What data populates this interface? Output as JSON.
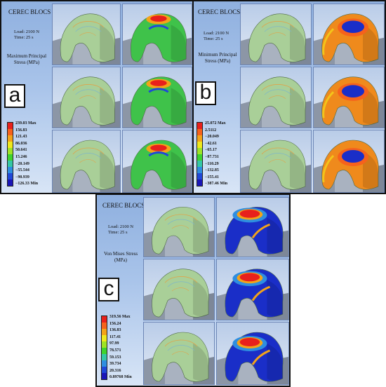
{
  "panels": [
    {
      "id": "a",
      "letter": "a",
      "title": "CEREC BLOCS",
      "load": "Load: 2100 N",
      "time": "Time: 25 s",
      "stress_type": "Maximum Principal Stress (MPa)",
      "legend": [
        "239.03 Max",
        "156.83",
        "121.43",
        "86.036",
        "50.641",
        "15.246",
        "−20.149",
        "−55.544",
        "−90.939",
        "−126.33 Min"
      ],
      "colormap": [
        "#e8201c",
        "#f6621c",
        "#f3a319",
        "#eee81e",
        "#9ee326",
        "#3fd32e",
        "#34c7a6",
        "#2e8ee0",
        "#2048d8",
        "#1a16b8"
      ]
    },
    {
      "id": "b",
      "letter": "b",
      "title": "CEREC BLOCS",
      "load": "Load: 2100 N",
      "time": "Time: 25 s",
      "stress_type": "Minimum Principal Stress (MPa)",
      "legend": [
        "25.072 Max",
        "2.5112",
        "−20.049",
        "−42.61",
        "−65.17",
        "−87.731",
        "−110.29",
        "−132.85",
        "−155.41",
        "−387.46 Min"
      ],
      "colormap": [
        "#e8201c",
        "#f6621c",
        "#f3a319",
        "#eee81e",
        "#9ee326",
        "#3fd32e",
        "#34c7a6",
        "#2e8ee0",
        "#2048d8",
        "#1a16b8"
      ]
    },
    {
      "id": "c",
      "letter": "c",
      "title": "CEREC BLOCS",
      "load": "Load: 2100 N",
      "time": "Time: 25 s",
      "stress_type": "Von Mises Stress (MPa)",
      "legend": [
        "319.56 Max",
        "156.24",
        "136.83",
        "117.41",
        "97.99",
        "78.571",
        "59.153",
        "39.734",
        "20.316",
        "0.89768 Min"
      ],
      "colormap": [
        "#e8201c",
        "#f6621c",
        "#f3a319",
        "#eee81e",
        "#9ee326",
        "#3fd32e",
        "#34c7a6",
        "#2e8ee0",
        "#2048d8",
        "#1a16b8"
      ]
    }
  ]
}
